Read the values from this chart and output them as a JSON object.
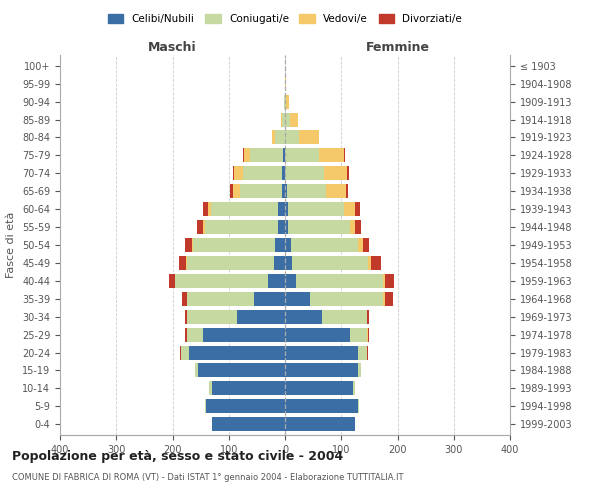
{
  "age_groups": [
    "0-4",
    "5-9",
    "10-14",
    "15-19",
    "20-24",
    "25-29",
    "30-34",
    "35-39",
    "40-44",
    "45-49",
    "50-54",
    "55-59",
    "60-64",
    "65-69",
    "70-74",
    "75-79",
    "80-84",
    "85-89",
    "90-94",
    "95-99",
    "100+"
  ],
  "birth_years": [
    "1999-2003",
    "1994-1998",
    "1989-1993",
    "1984-1988",
    "1979-1983",
    "1974-1978",
    "1969-1973",
    "1964-1968",
    "1959-1963",
    "1954-1958",
    "1949-1953",
    "1944-1948",
    "1939-1943",
    "1934-1938",
    "1929-1933",
    "1924-1928",
    "1919-1923",
    "1914-1918",
    "1909-1913",
    "1904-1908",
    "≤ 1903"
  ],
  "maschi": {
    "celibi": [
      130,
      140,
      130,
      155,
      170,
      145,
      85,
      55,
      30,
      20,
      18,
      13,
      12,
      5,
      5,
      3,
      0,
      0,
      0,
      0,
      0
    ],
    "coniugati": [
      0,
      2,
      5,
      5,
      15,
      30,
      90,
      120,
      165,
      155,
      145,
      130,
      120,
      75,
      70,
      60,
      18,
      5,
      2,
      0,
      0
    ],
    "vedovi": [
      0,
      0,
      0,
      0,
      0,
      0,
      0,
      0,
      1,
      1,
      2,
      3,
      5,
      12,
      15,
      10,
      5,
      2,
      0,
      0,
      0
    ],
    "divorziati": [
      0,
      0,
      0,
      0,
      1,
      2,
      3,
      8,
      10,
      12,
      12,
      10,
      8,
      5,
      3,
      2,
      0,
      0,
      0,
      0,
      0
    ]
  },
  "femmine": {
    "nubili": [
      125,
      130,
      120,
      130,
      130,
      115,
      65,
      45,
      20,
      12,
      10,
      5,
      5,
      3,
      0,
      0,
      0,
      0,
      0,
      0,
      0
    ],
    "coniugate": [
      0,
      2,
      5,
      5,
      15,
      30,
      80,
      130,
      155,
      135,
      120,
      110,
      100,
      70,
      70,
      60,
      25,
      8,
      2,
      0,
      0
    ],
    "vedove": [
      0,
      0,
      0,
      0,
      0,
      2,
      0,
      2,
      3,
      5,
      8,
      10,
      20,
      35,
      40,
      45,
      35,
      15,
      5,
      2,
      0
    ],
    "divorziate": [
      0,
      0,
      0,
      0,
      2,
      3,
      5,
      15,
      15,
      18,
      12,
      10,
      8,
      4,
      3,
      2,
      0,
      0,
      0,
      0,
      0
    ]
  },
  "colors": {
    "celibi_nubili": "#3a6ea5",
    "coniugati": "#c5d9a0",
    "vedovi": "#f5c96a",
    "divorziati": "#c0392b"
  },
  "title": "Popolazione per età, sesso e stato civile - 2004",
  "subtitle": "COMUNE DI FABRICA DI ROMA (VT) - Dati ISTAT 1° gennaio 2004 - Elaborazione TUTTITALIA.IT",
  "xlabel_maschi": "Maschi",
  "xlabel_femmine": "Femmine",
  "ylabel": "Fasce di età",
  "xlim": 400,
  "xticks": [
    -400,
    -300,
    -200,
    -100,
    0,
    100,
    200,
    300,
    400
  ],
  "xticklabels": [
    "400",
    "300",
    "200",
    "100",
    "0",
    "100",
    "200",
    "300",
    "400"
  ]
}
